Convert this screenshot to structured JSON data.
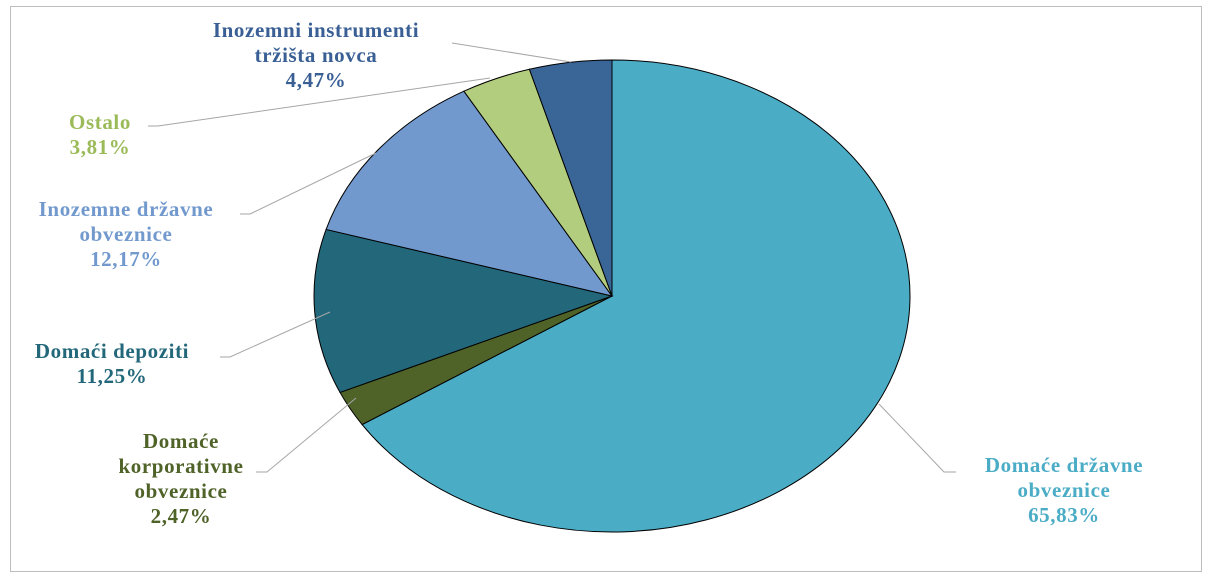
{
  "chart_data": {
    "type": "pie",
    "title": "",
    "start_angle_deg": 0,
    "direction": "clockwise",
    "slices": [
      {
        "name": "Domaće državne obveznice",
        "label_lines": [
          "Domaće državne",
          "obveznice"
        ],
        "value": 65.83,
        "value_label": "65,83%",
        "color": "#4bacc6",
        "label_color": "#4bacc6"
      },
      {
        "name": "Domaće korporativne obveznice",
        "label_lines": [
          "Domaće",
          "korporativne",
          "obveznice"
        ],
        "value": 2.47,
        "value_label": "2,47%",
        "color": "#4f6228",
        "label_color": "#4f6228"
      },
      {
        "name": "Domaći depoziti",
        "label_lines": [
          "Domaći depoziti"
        ],
        "value": 11.25,
        "value_label": "11,25%",
        "color": "#23677a",
        "label_color": "#23677a"
      },
      {
        "name": "Inozemne državne obveznice",
        "label_lines": [
          "Inozemne državne",
          "obveznice"
        ],
        "value": 12.17,
        "value_label": "12,17%",
        "color": "#7299cd",
        "label_color": "#7299cd"
      },
      {
        "name": "Ostalo",
        "label_lines": [
          "Ostalo"
        ],
        "value": 3.81,
        "value_label": "3,81%",
        "color": "#b3cd7e",
        "label_color": "#9bbb59"
      },
      {
        "name": "Inozemni instrumenti tržišta novca",
        "label_lines": [
          "Inozemni instrumenti",
          "tržišta novca"
        ],
        "value": 4.47,
        "value_label": "4,47%",
        "color": "#3a6597",
        "label_color": "#3a5f95"
      }
    ]
  }
}
